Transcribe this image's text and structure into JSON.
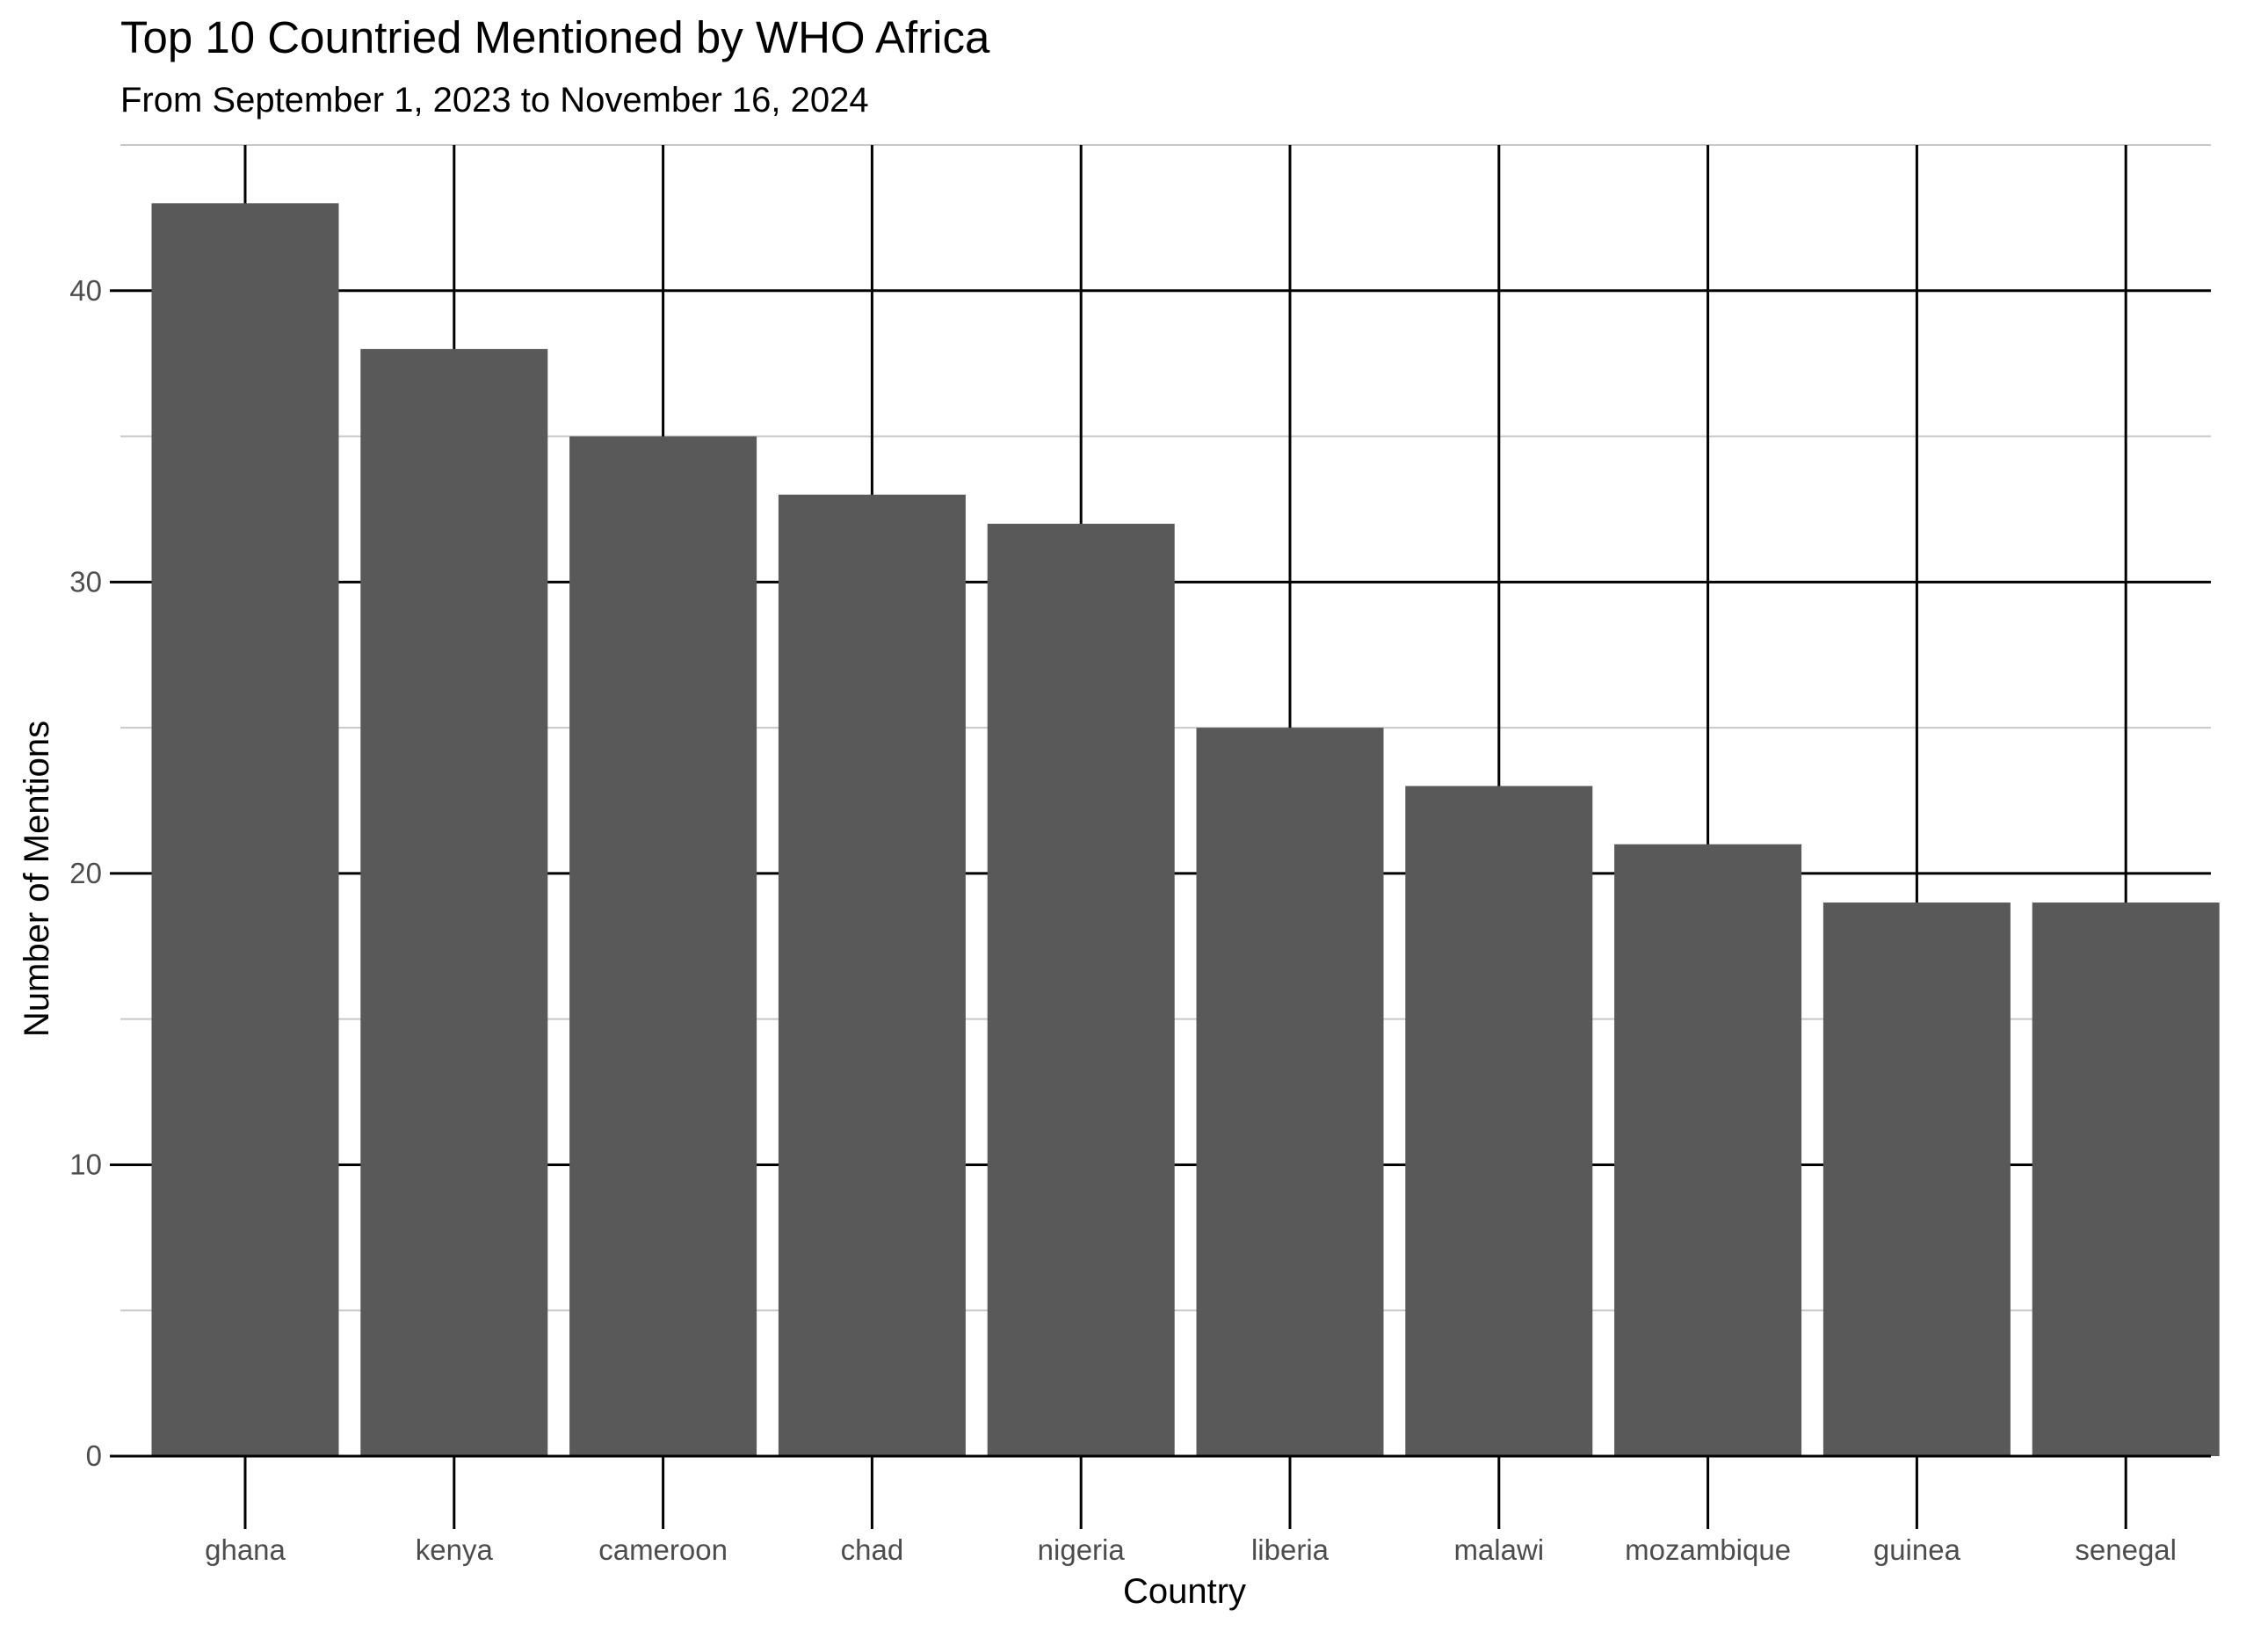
{
  "chart_data": {
    "type": "bar",
    "title": "Top 10 Countried Mentioned by WHO Africa",
    "subtitle": "From September 1, 2023 to November 16, 2024",
    "xlabel": "Country",
    "ylabel": "Number of Mentions",
    "categories": [
      "ghana",
      "kenya",
      "cameroon",
      "chad",
      "nigeria",
      "liberia",
      "malawi",
      "mozambique",
      "guinea",
      "senegal"
    ],
    "values": [
      43,
      38,
      35,
      33,
      32,
      25,
      23,
      21,
      19,
      19
    ],
    "ylim": [
      0,
      45
    ],
    "yticks": [
      0,
      10,
      20,
      30,
      40
    ],
    "grid": true,
    "legend": "none",
    "colors": {
      "bar": "#595959",
      "major_grid": "#000000",
      "minor_grid": "#c8c8c8",
      "tick_text": "#4d4d4d",
      "text": "#000000",
      "background": "#ffffff"
    }
  }
}
